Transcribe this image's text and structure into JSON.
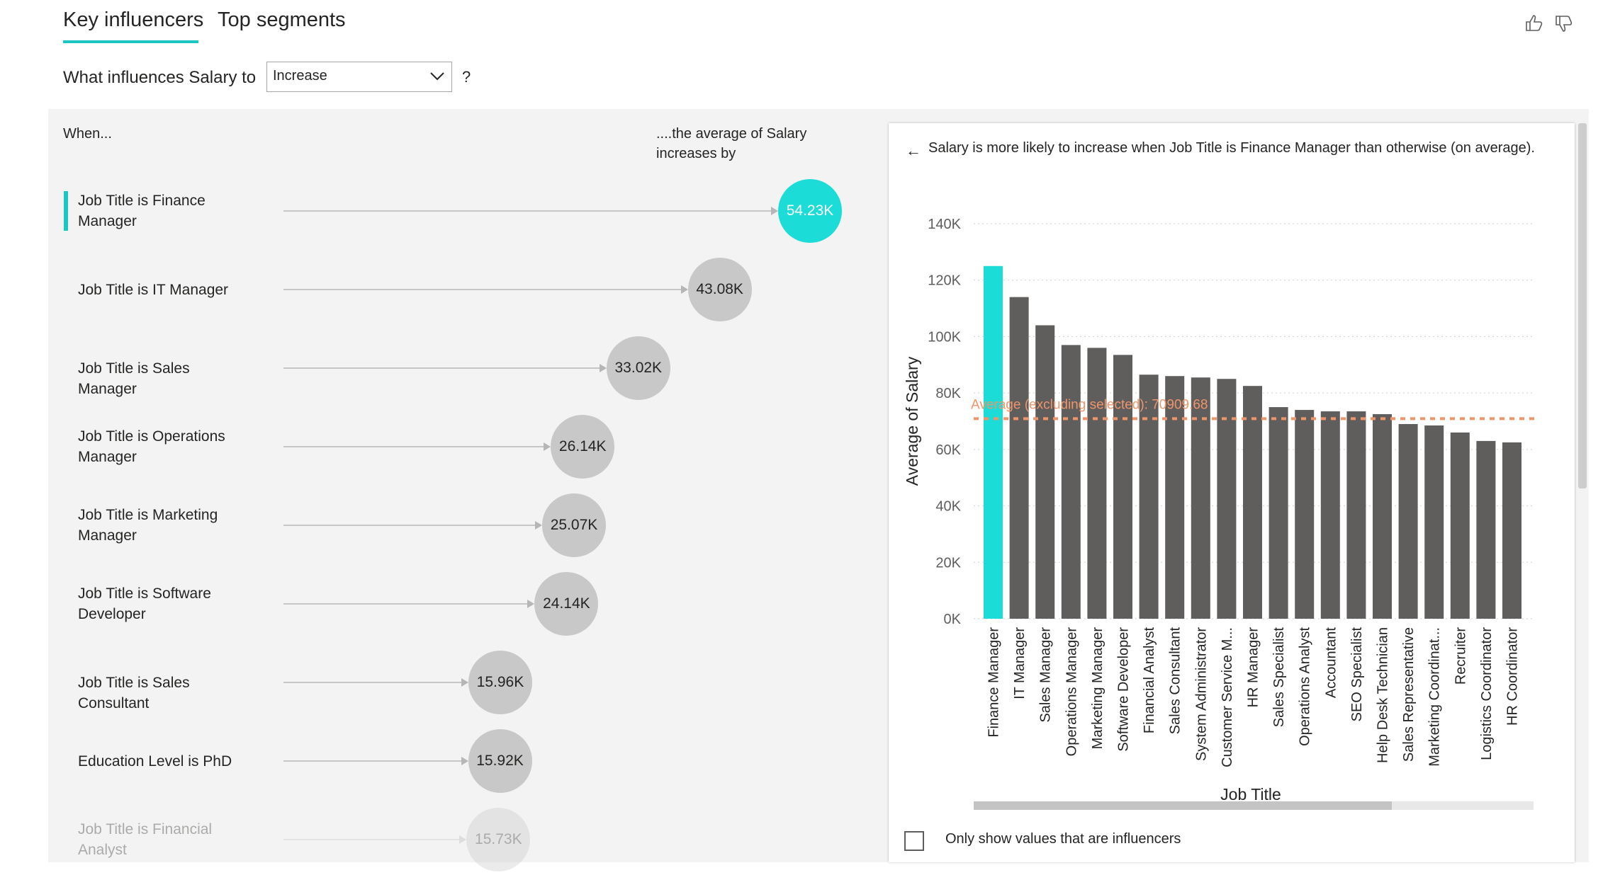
{
  "tabs": [
    {
      "label": "Key influencers",
      "active": true
    },
    {
      "label": "Top segments",
      "active": false
    }
  ],
  "question": {
    "label": "What influences Salary to",
    "dropdown_value": "Increase",
    "help": "?"
  },
  "feedback": {
    "like_icon": "thumbs-up-icon",
    "dislike_icon": "thumbs-down-icon"
  },
  "columns": {
    "when": "When...",
    "average": "....the average of Salary increases by"
  },
  "influencers": [
    {
      "label": "Job Title is Finance Manager",
      "value": "54.23K",
      "selected": true
    },
    {
      "label": "Job Title is IT Manager",
      "value": "43.08K"
    },
    {
      "label": "Job Title is Sales Manager",
      "value": "33.02K"
    },
    {
      "label": "Job Title is Operations Manager",
      "value": "26.14K"
    },
    {
      "label": "Job Title is Marketing Manager",
      "value": "25.07K"
    },
    {
      "label": "Job Title is Software Developer",
      "value": "24.14K"
    },
    {
      "label": "Job Title is Sales Consultant",
      "value": "15.96K"
    },
    {
      "label": "Education Level is PhD",
      "value": "15.92K"
    },
    {
      "label": "Job Title is Financial Analyst",
      "value": "15.73K",
      "partially_visible": true
    }
  ],
  "detail": {
    "back_icon": "back-arrow-icon",
    "title": "Salary is more likely to increase when Job Title is Finance Manager than otherwise (on average).",
    "checkbox_label": "Only show values that are influencers",
    "checkbox_checked": false
  },
  "chart_data": {
    "type": "bar",
    "xlabel": "Job Title",
    "ylabel": "Average of Salary",
    "ylim": [
      0,
      140000
    ],
    "yticks": [
      "0K",
      "20K",
      "40K",
      "60K",
      "80K",
      "100K",
      "120K",
      "140K"
    ],
    "categories": [
      "Finance Manager",
      "IT Manager",
      "Sales Manager",
      "Operations Manager",
      "Marketing Manager",
      "Software Developer",
      "Financial Analyst",
      "Sales Consultant",
      "System Administrator",
      "Customer Service M...",
      "HR Manager",
      "Sales Specialist",
      "Operations Analyst",
      "Accountant",
      "SEO Specialist",
      "Help Desk Technician",
      "Sales Representative",
      "Marketing Coordinat...",
      "Recruiter",
      "Logistics Coordinator",
      "HR Coordinator"
    ],
    "values": [
      125000,
      114000,
      104000,
      97000,
      96000,
      93500,
      86500,
      86000,
      85500,
      85000,
      82500,
      75000,
      74000,
      73500,
      73500,
      72500,
      69000,
      68500,
      66000,
      63000,
      62500
    ],
    "highlight": "Finance Manager",
    "reference_line": {
      "label": "Average (excluding selected): 70909.68",
      "value": 70909.68
    },
    "grid": true,
    "colors": {
      "highlight": "#1bdcd7",
      "bar": "#605e5c",
      "reference": "#f0956a",
      "accent": "#1bc7c3"
    }
  }
}
